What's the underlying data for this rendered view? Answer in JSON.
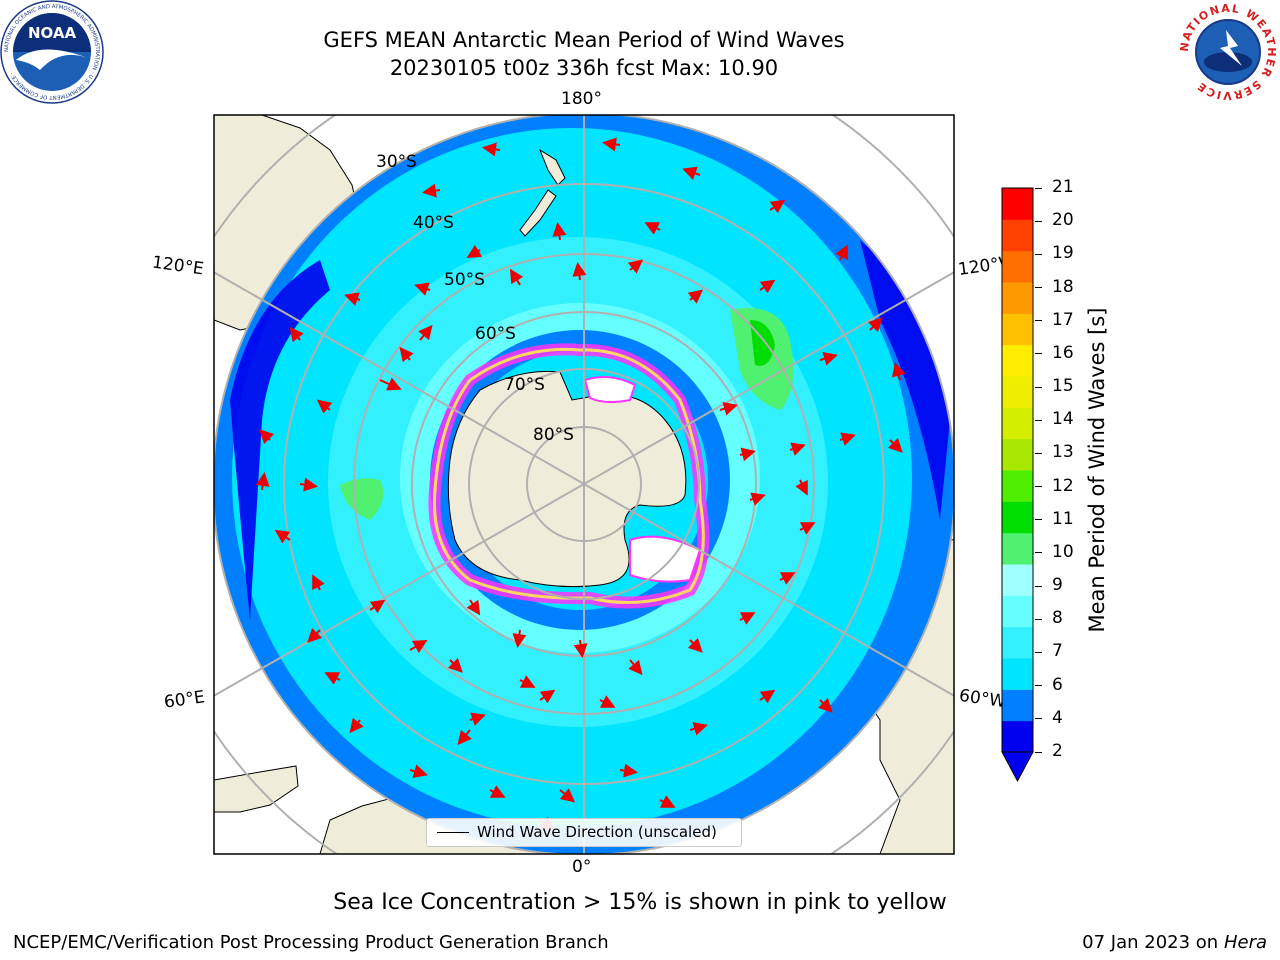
{
  "header": {
    "title_line1": "GEFS MEAN Antarctic Mean Period of Wind Waves",
    "title_line2": "20230105 t00z 336h fcst   Max: 10.90"
  },
  "logos": {
    "left": "NOAA",
    "left_ring": "NATIONAL OCEANIC AND ATMOSPHERIC ADMINISTRATION · U.S. DEPARTMENT OF COMMERCE ·",
    "right_ring": "NATIONAL WEATHER SERVICE"
  },
  "map": {
    "longitude_labels": {
      "top": "180°",
      "bottom": "0°",
      "upper_left": "120°E",
      "upper_right": "120°W",
      "lower_left": "60°E",
      "lower_right": "60°W"
    },
    "latitude_labels": [
      "30°S",
      "40°S",
      "50°S",
      "60°S",
      "70°S",
      "80°S"
    ],
    "legend": {
      "label": "Wind Wave Direction (unscaled)"
    }
  },
  "colorbar": {
    "label": "Mean Period of Wind Waves [s]",
    "ticks": [
      "21",
      "20",
      "19",
      "18",
      "17",
      "16",
      "15",
      "14",
      "13",
      "12",
      "11",
      "10",
      "9",
      "8",
      "7",
      "6",
      "4",
      "2"
    ],
    "colors": [
      "#0000ee",
      "#0080ff",
      "#00e5ff",
      "#33f0ff",
      "#66ffff",
      "#a0ffff",
      "#50f070",
      "#00dd00",
      "#50ee00",
      "#a8e800",
      "#d4ee00",
      "#eeee00",
      "#ffee00",
      "#ffc000",
      "#ff9900",
      "#ff7000",
      "#ff4000",
      "#ff0000"
    ]
  },
  "footer": {
    "sea_ice_note": "Sea Ice Concentration > 15% is shown in pink to yellow",
    "branch": "NCEP/EMC/Verification Post Processing Product Generation Branch",
    "date_prefix": "07 Jan 2023 on",
    "machine": "Hera"
  }
}
